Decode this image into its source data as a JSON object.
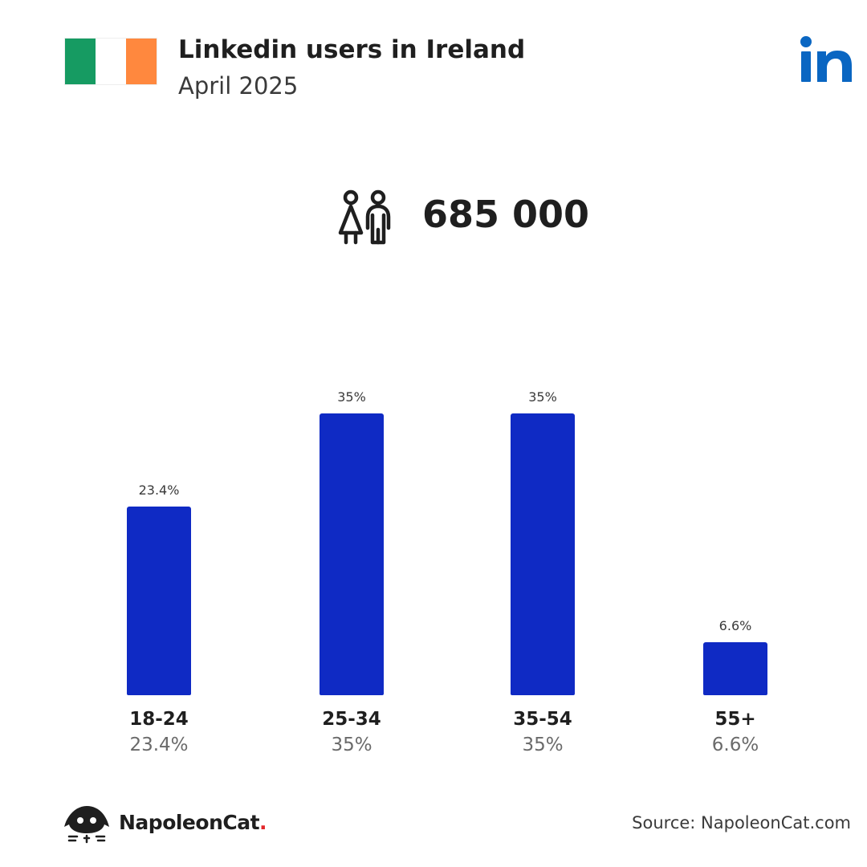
{
  "header": {
    "title": "Linkedin users in Ireland",
    "subtitle": "April 2025",
    "flag_colors": [
      "#169b62",
      "#ffffff",
      "#ff883e"
    ],
    "brand_icon": "linkedin-logo-icon",
    "brand_text": "in",
    "brand_color": "#0a66c2"
  },
  "total": {
    "icon": "users-icon",
    "value": "685 000"
  },
  "chart_data": {
    "type": "bar",
    "categories": [
      "18-24",
      "25-34",
      "35-54",
      "55+"
    ],
    "values": [
      23.4,
      35,
      35,
      6.6
    ],
    "value_labels": [
      "23.4%",
      "35%",
      "35%",
      "6.6%"
    ],
    "unit": "%",
    "bar_color": "#0f2ac4",
    "grid": false,
    "legend": "none"
  },
  "footer": {
    "brand_name": "NapoleonCat",
    "brand_dot": ".",
    "source": "Source: NapoleonCat.com",
    "logo_icon": "napoleoncat-logo-icon"
  }
}
